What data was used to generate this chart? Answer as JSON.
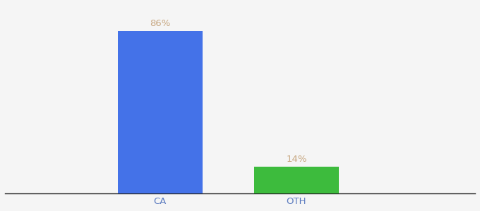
{
  "categories": [
    "CA",
    "OTH"
  ],
  "values": [
    86,
    14
  ],
  "bar_colors": [
    "#4472e8",
    "#3dbb3d"
  ],
  "label_color": "#c8a882",
  "label_fontsize": 9.5,
  "xlabel_fontsize": 9.5,
  "xlabel_color": "#5a7abf",
  "ylim": [
    0,
    100
  ],
  "bar_width": 0.18,
  "background_color": "#f5f5f5",
  "x_positions": [
    0.33,
    0.62
  ]
}
